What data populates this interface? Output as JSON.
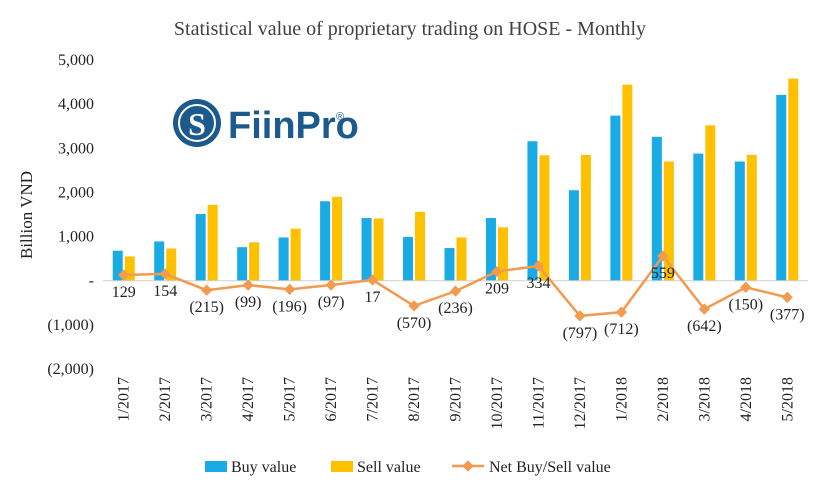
{
  "logo": {
    "text": "FiinPro",
    "registered": "®"
  },
  "chart_data": {
    "type": "bar",
    "title": "Statistical value of proprietary trading on HOSE - Monthly",
    "xlabel": "",
    "ylabel": "Billion VND",
    "ylim": [
      -2000,
      5000
    ],
    "yticks": [
      -2000,
      -1000,
      0,
      1000,
      2000,
      3000,
      4000,
      5000
    ],
    "ytick_labels": [
      "(2,000)",
      "(1,000)",
      "-",
      "1,000",
      "2,000",
      "3,000",
      "4,000",
      "5,000"
    ],
    "grid": false,
    "legend": "bottom",
    "categories": [
      "1/2017",
      "2/2017",
      "3/2017",
      "4/2017",
      "5/2017",
      "6/2017",
      "7/2017",
      "8/2017",
      "9/2017",
      "10/2017",
      "11/2017",
      "12/2017",
      "1/2018",
      "2/2018",
      "3/2018",
      "4/2018",
      "5/2018"
    ],
    "series": [
      {
        "name": "Buy value",
        "type": "bar",
        "color": "#1aabe5",
        "values": [
          680,
          890,
          1510,
          760,
          980,
          1800,
          1420,
          990,
          740,
          1420,
          3160,
          2050,
          3740,
          3260,
          2880,
          2700,
          4210
        ]
      },
      {
        "name": "Sell value",
        "type": "bar",
        "color": "#ffc000",
        "values": [
          550,
          730,
          1720,
          870,
          1180,
          1900,
          1410,
          1560,
          980,
          1210,
          2840,
          2850,
          4440,
          2700,
          3520,
          2850,
          4580
        ]
      },
      {
        "name": "Net Buy/Sell value",
        "type": "line",
        "color": "#f29a4e",
        "values": [
          129,
          154,
          -215,
          -99,
          -196,
          -97,
          17,
          -570,
          -236,
          209,
          334,
          -797,
          -712,
          559,
          -642,
          -150,
          -377
        ],
        "labels": [
          "129",
          "154",
          "(215)",
          "(99)",
          "(196)",
          "(97)",
          "17",
          "(570)",
          "(236)",
          "209",
          "334",
          "(797)",
          "(712)",
          "559",
          "(642)",
          "(150)",
          "(377)"
        ]
      }
    ]
  }
}
